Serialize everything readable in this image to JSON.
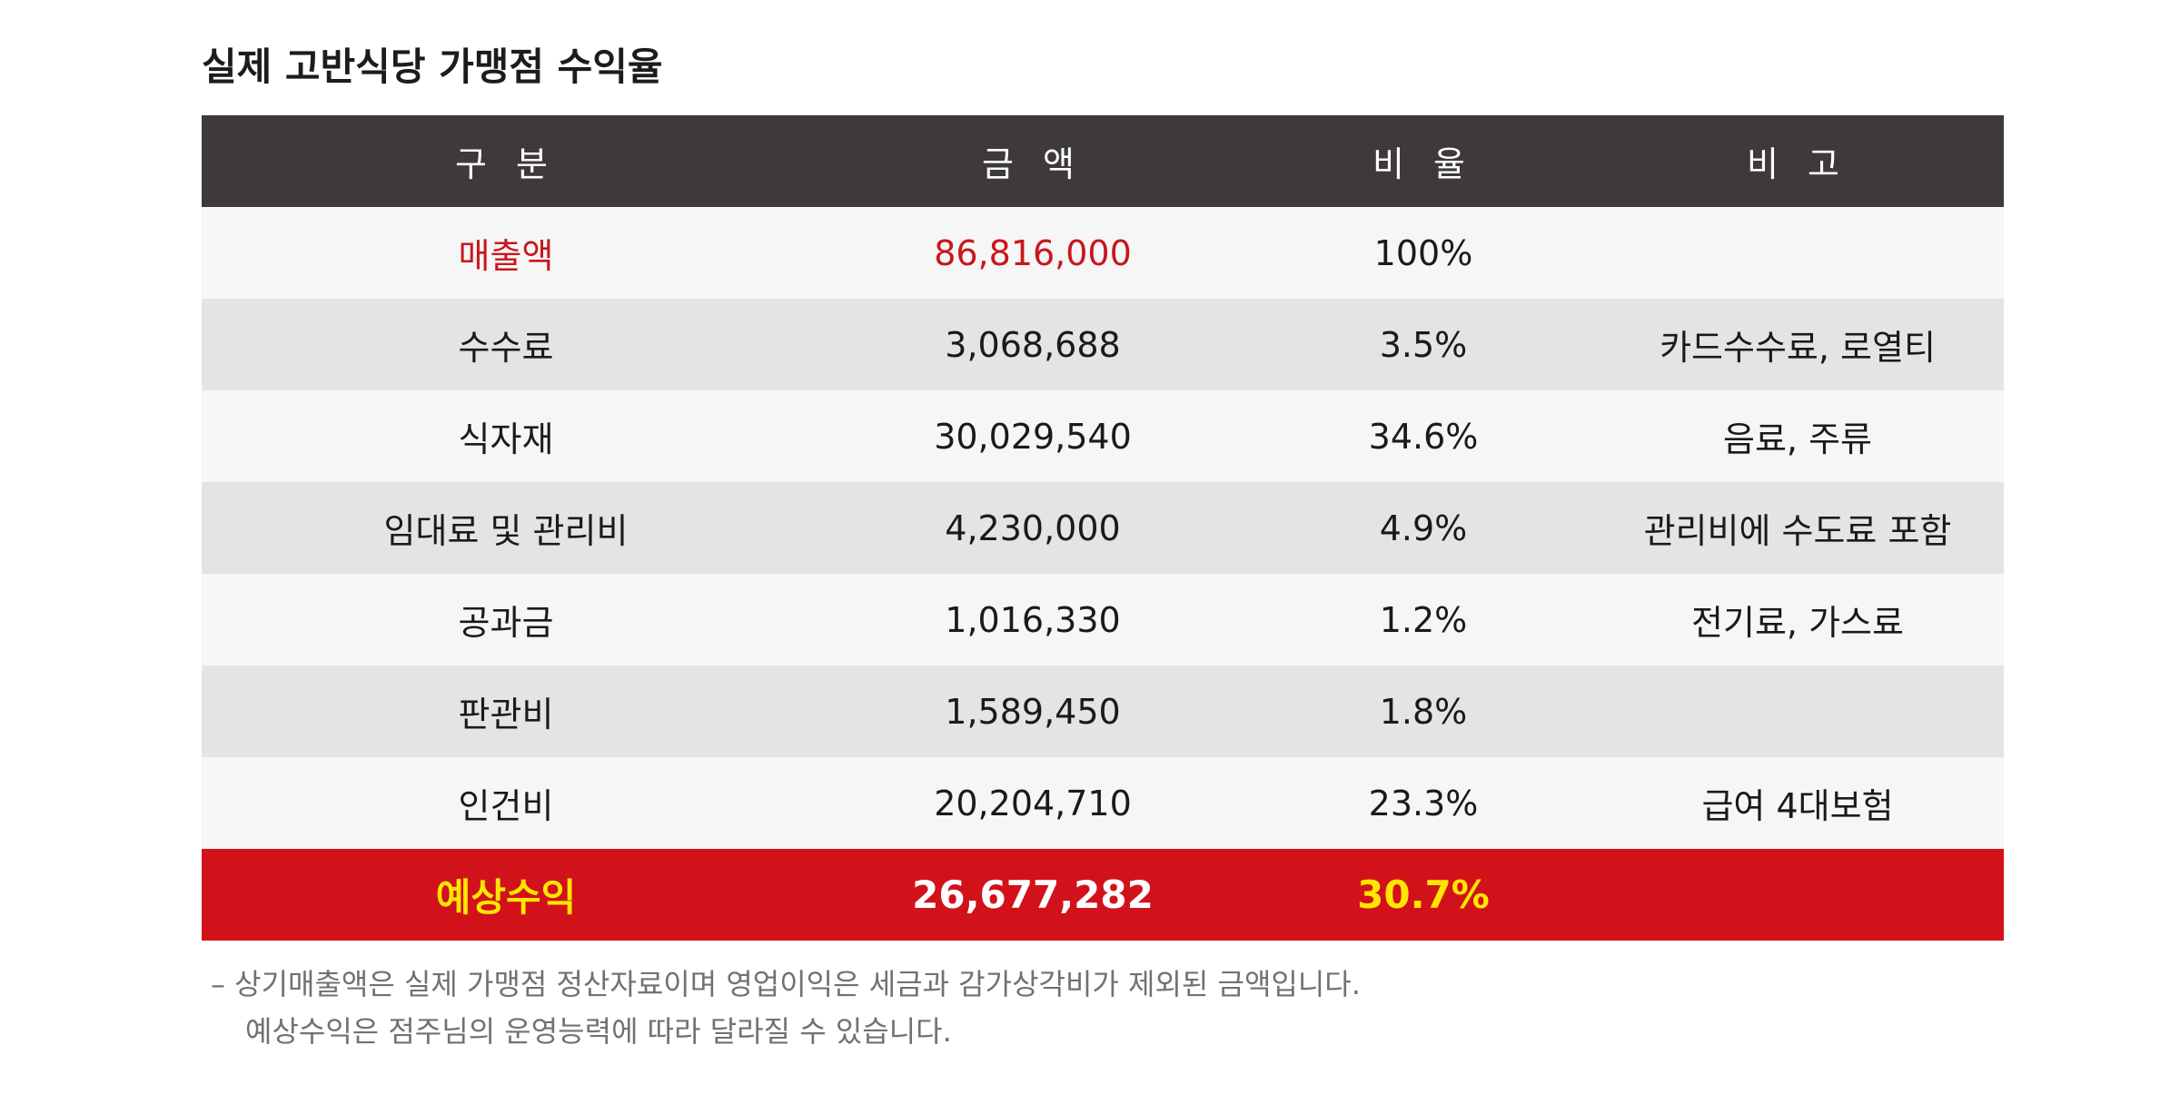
{
  "title": "실제 고반식당 가맹점 수익율",
  "table": {
    "headers": [
      "구 분",
      "금 액",
      "비 율",
      "비 고"
    ],
    "rows": [
      {
        "category": "매출액",
        "amount": "86,816,000",
        "ratio": "100%",
        "note": ""
      },
      {
        "category": "수수료",
        "amount": "3,068,688",
        "ratio": "3.5%",
        "note": "카드수수료, 로열티"
      },
      {
        "category": "식자재",
        "amount": "30,029,540",
        "ratio": "34.6%",
        "note": "음료, 주류"
      },
      {
        "category": "임대료 및 관리비",
        "amount": "4,230,000",
        "ratio": "4.9%",
        "note": "관리비에 수도료 포함"
      },
      {
        "category": "공과금",
        "amount": "1,016,330",
        "ratio": "1.2%",
        "note": "전기료, 가스료"
      },
      {
        "category": "판관비",
        "amount": "1,589,450",
        "ratio": "1.8%",
        "note": ""
      },
      {
        "category": "인건비",
        "amount": "20,204,710",
        "ratio": "23.3%",
        "note": "급여 4대보험"
      }
    ],
    "total": {
      "category": "예상수익",
      "amount": "26,677,282",
      "ratio": "30.7%",
      "note": ""
    }
  },
  "footnote": {
    "line1": "– 상기매출액은 실제 가맹점 정산자료이며 영업이익은 세금과 감가상각비가 제외된 금액입니다.",
    "line2": "예상수익은 점주님의 운영능력에 따라 달라질 수 있습니다."
  },
  "colors": {
    "header_bg": "#3e3a39",
    "row_light": "#f6f6f6",
    "row_dark": "#e5e4e2",
    "total_bg": "#d1121b",
    "highlight_red": "#c9161d",
    "highlight_yellow": "#ffe600"
  }
}
